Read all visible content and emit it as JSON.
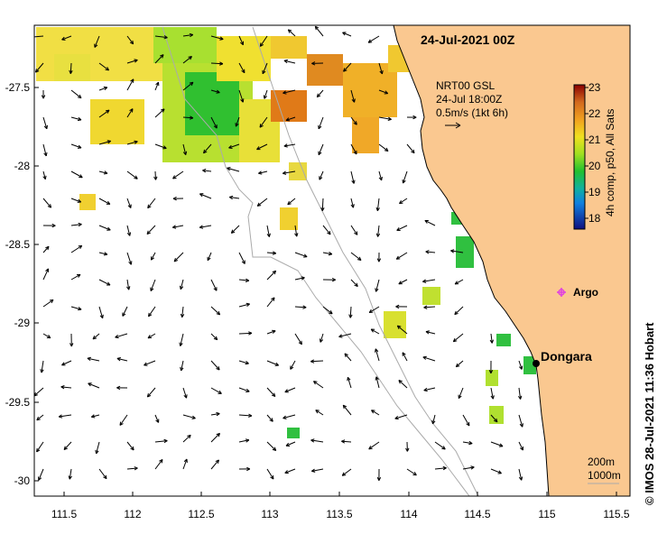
{
  "map": {
    "title": "24-Jul-2021 00Z",
    "current_info": {
      "line1": "NRT00 GSL",
      "line2": "24-Jul 18:00Z",
      "line3": "0.5m/s (1kt 6h)"
    },
    "x_axis": {
      "ticks": [
        "111.5",
        "112",
        "112.5",
        "113",
        "113.5",
        "114",
        "114.5",
        "115",
        "115.5"
      ]
    },
    "y_axis": {
      "ticks": [
        "-27.5",
        "-28",
        "-28.5",
        "-29",
        "-29.5",
        "-30"
      ]
    },
    "colorbar": {
      "ticks": [
        "23",
        "22",
        "21",
        "20",
        "19",
        "18"
      ],
      "label": "4h comp, p50, All Sats"
    },
    "places": {
      "argo_label": "Argo",
      "dongara_label": "Dongara"
    },
    "isobaths": {
      "line1": "200m",
      "line2": "1000m"
    },
    "credit": "© IMOS 28-Jul-2021 11:36 Hobart",
    "colors": {
      "land": "#fac890",
      "ocean": "#ffffff",
      "argo": "#e040e0",
      "isobath": "#aaaaaa"
    }
  }
}
